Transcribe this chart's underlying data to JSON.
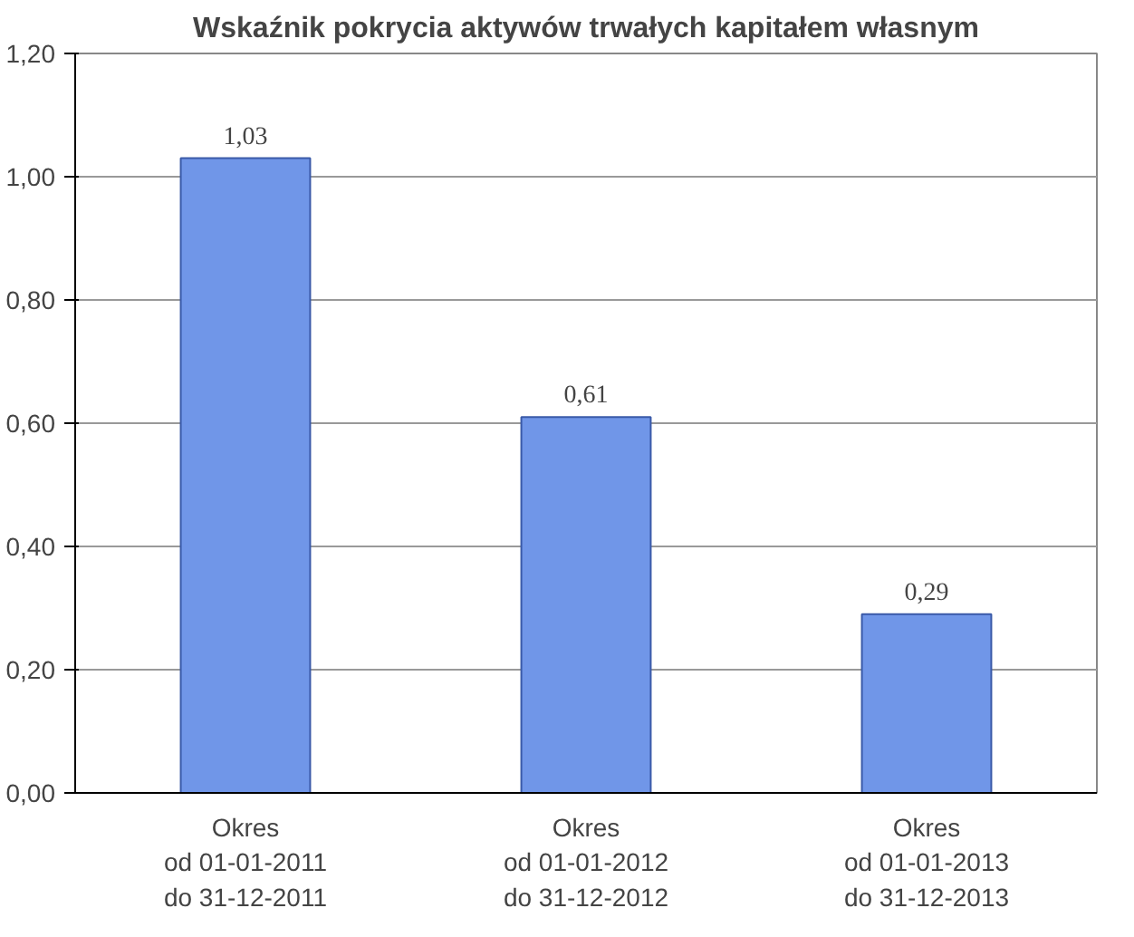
{
  "chart_data": {
    "type": "bar",
    "title": "Wskaźnik pokrycia aktywów trwałych kapitałem własnym",
    "categories": [
      "Okres\nod 01-01-2011\ndo 31-12-2011",
      "Okres\nod 01-01-2012\ndo 31-12-2012",
      "Okres\nod 01-01-2013\ndo 31-12-2013"
    ],
    "values": [
      1.03,
      0.61,
      0.29
    ],
    "value_labels": [
      "1,03",
      "0,61",
      "0,29"
    ],
    "color": "#7096e8",
    "ylim": [
      0,
      1.2
    ],
    "yticks": [
      {
        "value": 0,
        "label": "0,00"
      },
      {
        "value": 0.2,
        "label": "0,20"
      },
      {
        "value": 0.4,
        "label": "0,40"
      },
      {
        "value": 0.6,
        "label": "0,60"
      },
      {
        "value": 0.8,
        "label": "0,80"
      },
      {
        "value": 1.0,
        "label": "1,00"
      },
      {
        "value": 1.2,
        "label": "1,20"
      }
    ],
    "grid": "y"
  }
}
